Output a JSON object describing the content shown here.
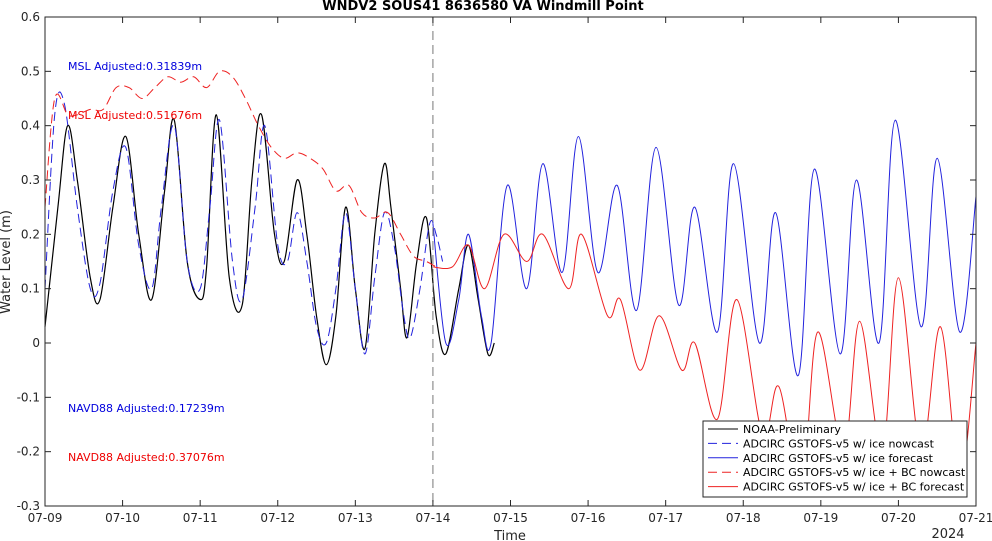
{
  "chart_data": {
    "type": "line",
    "title": "WNDV2 SOUS41 8636580 VA Windmill Point",
    "xlabel": "Time",
    "ylabel": "Water Level (m)",
    "year_label": "2024",
    "x_ticks": [
      "07-09",
      "07-10",
      "07-11",
      "07-12",
      "07-13",
      "07-14",
      "07-15",
      "07-16",
      "07-17",
      "07-18",
      "07-19",
      "07-20",
      "07-21"
    ],
    "xlim": [
      "07-09 00:00",
      "07-21 00:00"
    ],
    "ylim": [
      -0.3,
      0.6
    ],
    "y_ticks": [
      -0.3,
      -0.2,
      -0.1,
      0,
      0.1,
      0.2,
      0.3,
      0.4,
      0.5,
      0.6
    ],
    "nowcast_forecast_divider": "07-14 00:00",
    "grid": false,
    "legend_position": "bottom-right",
    "annotations": [
      {
        "text": "MSL Adjusted:0.31839m",
        "color": "#0000dd",
        "y": 0.51
      },
      {
        "text": "MSL Adjusted:0.51676m",
        "color": "#ee0000",
        "y": 0.42
      },
      {
        "text": "NAVD88 Adjusted:0.17239m",
        "color": "#0000dd",
        "y": -0.12
      },
      {
        "text": "NAVD88 Adjusted:0.37076m",
        "color": "#ee0000",
        "y": -0.21
      }
    ],
    "series": [
      {
        "name": "NOAA-Preliminary",
        "color": "#000000",
        "dash": "solid",
        "points": [
          [
            "07-09 00:00",
            0.03
          ],
          [
            "07-09 04:00",
            0.25
          ],
          [
            "07-09 07:00",
            0.4
          ],
          [
            "07-09 10:00",
            0.3
          ],
          [
            "07-09 14:00",
            0.12
          ],
          [
            "07-09 17:00",
            0.08
          ],
          [
            "07-09 21:00",
            0.25
          ],
          [
            "07-10 01:00",
            0.38
          ],
          [
            "07-10 05:00",
            0.2
          ],
          [
            "07-10 09:00",
            0.08
          ],
          [
            "07-10 13:00",
            0.28
          ],
          [
            "07-10 16:00",
            0.41
          ],
          [
            "07-10 20:00",
            0.15
          ],
          [
            "07-11 00:00",
            0.08
          ],
          [
            "07-11 02:00",
            0.14
          ],
          [
            "07-11 05:00",
            0.42
          ],
          [
            "07-11 09:00",
            0.12
          ],
          [
            "07-11 13:00",
            0.07
          ],
          [
            "07-11 16:00",
            0.3
          ],
          [
            "07-11 19:00",
            0.42
          ],
          [
            "07-11 23:00",
            0.2
          ],
          [
            "07-12 02:00",
            0.15
          ],
          [
            "07-12 06:00",
            0.3
          ],
          [
            "07-12 09:00",
            0.2
          ],
          [
            "07-12 12:00",
            0.05
          ],
          [
            "07-12 15:00",
            -0.04
          ],
          [
            "07-12 18:00",
            0.05
          ],
          [
            "07-12 21:00",
            0.25
          ],
          [
            "07-13 00:00",
            0.1
          ],
          [
            "07-13 03:00",
            -0.01
          ],
          [
            "07-13 06:00",
            0.2
          ],
          [
            "07-13 09:00",
            0.33
          ],
          [
            "07-13 11:00",
            0.25
          ],
          [
            "07-13 14:00",
            0.1
          ],
          [
            "07-13 16:00",
            0.01
          ],
          [
            "07-13 19:00",
            0.15
          ],
          [
            "07-13 22:00",
            0.23
          ],
          [
            "07-14 01:00",
            0.05
          ],
          [
            "07-14 04:00",
            -0.02
          ],
          [
            "07-14 08:00",
            0.1
          ],
          [
            "07-14 11:00",
            0.18
          ],
          [
            "07-14 14:00",
            0.08
          ],
          [
            "07-14 17:00",
            -0.02
          ],
          [
            "07-14 19:00",
            0.0
          ]
        ]
      },
      {
        "name": "ADCIRC GSTOFS-v5 w/ ice nowcast",
        "color": "#2222dd",
        "dash": "dashed",
        "points": [
          [
            "07-09 00:00",
            0.1
          ],
          [
            "07-09 03:00",
            0.42
          ],
          [
            "07-09 06:00",
            0.44
          ],
          [
            "07-09 10:00",
            0.25
          ],
          [
            "07-09 14:00",
            0.1
          ],
          [
            "07-09 17:00",
            0.11
          ],
          [
            "07-09 21:00",
            0.28
          ],
          [
            "07-10 01:00",
            0.36
          ],
          [
            "07-10 05:00",
            0.18
          ],
          [
            "07-10 09:00",
            0.1
          ],
          [
            "07-10 12:00",
            0.25
          ],
          [
            "07-10 16:00",
            0.4
          ],
          [
            "07-10 20:00",
            0.15
          ],
          [
            "07-11 00:00",
            0.1
          ],
          [
            "07-11 03:00",
            0.25
          ],
          [
            "07-11 06:00",
            0.41
          ],
          [
            "07-11 10:00",
            0.15
          ],
          [
            "07-11 13:00",
            0.08
          ],
          [
            "07-11 17:00",
            0.25
          ],
          [
            "07-11 20:00",
            0.4
          ],
          [
            "07-12 00:00",
            0.18
          ],
          [
            "07-12 03:00",
            0.15
          ],
          [
            "07-12 06:00",
            0.24
          ],
          [
            "07-12 09:00",
            0.15
          ],
          [
            "07-12 12:00",
            0.03
          ],
          [
            "07-12 15:00",
            0.0
          ],
          [
            "07-12 18:00",
            0.1
          ],
          [
            "07-12 21:00",
            0.24
          ],
          [
            "07-13 00:00",
            0.1
          ],
          [
            "07-13 03:00",
            -0.02
          ],
          [
            "07-13 06:00",
            0.12
          ],
          [
            "07-13 09:00",
            0.24
          ],
          [
            "07-13 12:00",
            0.18
          ],
          [
            "07-13 15:00",
            0.05
          ],
          [
            "07-13 17:00",
            0.01
          ],
          [
            "07-13 20:00",
            0.1
          ],
          [
            "07-13 23:00",
            0.22
          ],
          [
            "07-14 01:00",
            0.2
          ],
          [
            "07-14 03:00",
            0.15
          ]
        ]
      },
      {
        "name": "ADCIRC GSTOFS-v5 w/ ice forecast",
        "color": "#2222dd",
        "dash": "solid",
        "points": [
          [
            "07-14 00:00",
            0.22
          ],
          [
            "07-14 04:00",
            0.0
          ],
          [
            "07-14 08:00",
            0.08
          ],
          [
            "07-14 11:00",
            0.2
          ],
          [
            "07-14 15:00",
            0.05
          ],
          [
            "07-14 18:00",
            0.0
          ],
          [
            "07-14 23:00",
            0.29
          ],
          [
            "07-15 05:00",
            0.1
          ],
          [
            "07-15 10:00",
            0.33
          ],
          [
            "07-15 16:00",
            0.13
          ],
          [
            "07-15 21:00",
            0.38
          ],
          [
            "07-16 03:00",
            0.13
          ],
          [
            "07-16 09:00",
            0.29
          ],
          [
            "07-16 15:00",
            0.06
          ],
          [
            "07-16 21:00",
            0.36
          ],
          [
            "07-17 04:00",
            0.07
          ],
          [
            "07-17 09:00",
            0.25
          ],
          [
            "07-17 16:00",
            0.02
          ],
          [
            "07-17 21:00",
            0.33
          ],
          [
            "07-18 05:00",
            0.0
          ],
          [
            "07-18 10:00",
            0.24
          ],
          [
            "07-18 17:00",
            -0.06
          ],
          [
            "07-18 22:00",
            0.32
          ],
          [
            "07-19 06:00",
            -0.02
          ],
          [
            "07-19 11:00",
            0.3
          ],
          [
            "07-19 18:00",
            0.0
          ],
          [
            "07-19 23:00",
            0.41
          ],
          [
            "07-20 07:00",
            0.03
          ],
          [
            "07-20 12:00",
            0.34
          ],
          [
            "07-20 19:00",
            0.02
          ],
          [
            "07-21 00:00",
            0.27
          ]
        ]
      },
      {
        "name": "ADCIRC GSTOFS-v5 w/ ice + BC nowcast",
        "color": "#ee2222",
        "dash": "dashed",
        "points": [
          [
            "07-09 00:00",
            0.25
          ],
          [
            "07-09 03:00",
            0.45
          ],
          [
            "07-09 07:00",
            0.42
          ],
          [
            "07-09 10:00",
            0.42
          ],
          [
            "07-09 14:00",
            0.43
          ],
          [
            "07-09 18:00",
            0.43
          ],
          [
            "07-09 22:00",
            0.47
          ],
          [
            "07-10 02:00",
            0.47
          ],
          [
            "07-10 06:00",
            0.45
          ],
          [
            "07-10 10:00",
            0.47
          ],
          [
            "07-10 14:00",
            0.49
          ],
          [
            "07-10 18:00",
            0.48
          ],
          [
            "07-10 22:00",
            0.49
          ],
          [
            "07-11 02:00",
            0.47
          ],
          [
            "07-11 06:00",
            0.5
          ],
          [
            "07-11 10:00",
            0.49
          ],
          [
            "07-11 14:00",
            0.45
          ],
          [
            "07-11 18:00",
            0.4
          ],
          [
            "07-11 22:00",
            0.36
          ],
          [
            "07-12 02:00",
            0.34
          ],
          [
            "07-12 06:00",
            0.35
          ],
          [
            "07-12 10:00",
            0.34
          ],
          [
            "07-12 14:00",
            0.32
          ],
          [
            "07-12 18:00",
            0.28
          ],
          [
            "07-12 22:00",
            0.29
          ],
          [
            "07-13 02:00",
            0.24
          ],
          [
            "07-13 06:00",
            0.23
          ],
          [
            "07-13 10:00",
            0.24
          ],
          [
            "07-13 14:00",
            0.2
          ],
          [
            "07-13 18:00",
            0.16
          ],
          [
            "07-13 22:00",
            0.15
          ],
          [
            "07-14 01:00",
            0.14
          ]
        ]
      },
      {
        "name": "ADCIRC GSTOFS-v5 w/ ice + BC forecast",
        "color": "#ee2222",
        "dash": "solid",
        "points": [
          [
            "07-14 00:00",
            0.14
          ],
          [
            "07-14 06:00",
            0.14
          ],
          [
            "07-14 11:00",
            0.18
          ],
          [
            "07-14 16:00",
            0.1
          ],
          [
            "07-14 22:00",
            0.2
          ],
          [
            "07-15 05:00",
            0.15
          ],
          [
            "07-15 10:00",
            0.2
          ],
          [
            "07-15 18:00",
            0.1
          ],
          [
            "07-15 22:00",
            0.2
          ],
          [
            "07-16 06:00",
            0.05
          ],
          [
            "07-16 10:00",
            0.08
          ],
          [
            "07-16 16:00",
            -0.05
          ],
          [
            "07-16 22:00",
            0.05
          ],
          [
            "07-17 05:00",
            -0.05
          ],
          [
            "07-17 09:00",
            0.0
          ],
          [
            "07-17 16:00",
            -0.14
          ],
          [
            "07-17 22:00",
            0.08
          ],
          [
            "07-18 06:00",
            -0.17
          ],
          [
            "07-18 11:00",
            -0.08
          ],
          [
            "07-18 18:00",
            -0.27
          ],
          [
            "07-18 23:00",
            0.02
          ],
          [
            "07-19 07:00",
            -0.2
          ],
          [
            "07-19 12:00",
            0.04
          ],
          [
            "07-19 19:00",
            -0.2
          ],
          [
            "07-20 00:00",
            0.12
          ],
          [
            "07-20 07:00",
            -0.2
          ],
          [
            "07-20 13:00",
            0.03
          ],
          [
            "07-20 19:00",
            -0.25
          ],
          [
            "07-21 00:00",
            0.0
          ]
        ]
      }
    ]
  }
}
